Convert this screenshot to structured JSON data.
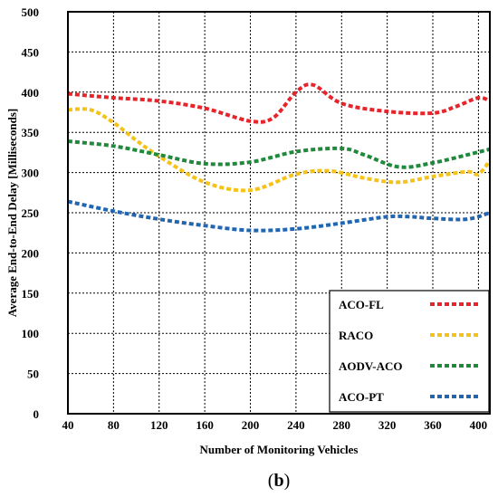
{
  "chart_data": {
    "type": "line",
    "xlabel": "Number of Monitoring Vehicles",
    "ylabel": "Average End-to-End Delay [Milliseconds]",
    "panel_label": "(b)",
    "xlim": [
      40,
      410
    ],
    "ylim": [
      0,
      500
    ],
    "x_ticks": [
      "40",
      "80",
      "120",
      "160",
      "200",
      "240",
      "280",
      "320",
      "360",
      "400"
    ],
    "y_ticks": [
      "0",
      "50",
      "100",
      "150",
      "200",
      "250",
      "300",
      "350",
      "400",
      "450",
      "500"
    ],
    "grid": true,
    "legend_position": "bottom-right",
    "series": [
      {
        "name": "ACO-FL",
        "color": "#e8242b",
        "x": [
          40,
          80,
          120,
          160,
          200,
          220,
          240,
          255,
          280,
          320,
          360,
          380,
          400,
          410
        ],
        "y": [
          398,
          393,
          389,
          380,
          364,
          368,
          400,
          409,
          386,
          376,
          374,
          382,
          393,
          389
        ]
      },
      {
        "name": "RACO",
        "color": "#f5c218",
        "x": [
          40,
          60,
          80,
          100,
          120,
          160,
          200,
          240,
          270,
          300,
          330,
          360,
          390,
          400,
          410
        ],
        "y": [
          378,
          378,
          362,
          340,
          320,
          288,
          278,
          298,
          302,
          293,
          288,
          295,
          301,
          298,
          315
        ]
      },
      {
        "name": "AODV-ACO",
        "color": "#1f8a3b",
        "x": [
          40,
          80,
          120,
          160,
          200,
          240,
          280,
          300,
          330,
          360,
          390,
          410
        ],
        "y": [
          339,
          333,
          322,
          311,
          313,
          326,
          330,
          322,
          307,
          312,
          322,
          329
        ]
      },
      {
        "name": "ACO-PT",
        "color": "#2166b0",
        "x": [
          40,
          80,
          120,
          160,
          200,
          240,
          280,
          320,
          340,
          360,
          390,
          410
        ],
        "y": [
          264,
          252,
          242,
          234,
          228,
          230,
          237,
          245,
          245,
          243,
          242,
          250
        ]
      }
    ]
  }
}
